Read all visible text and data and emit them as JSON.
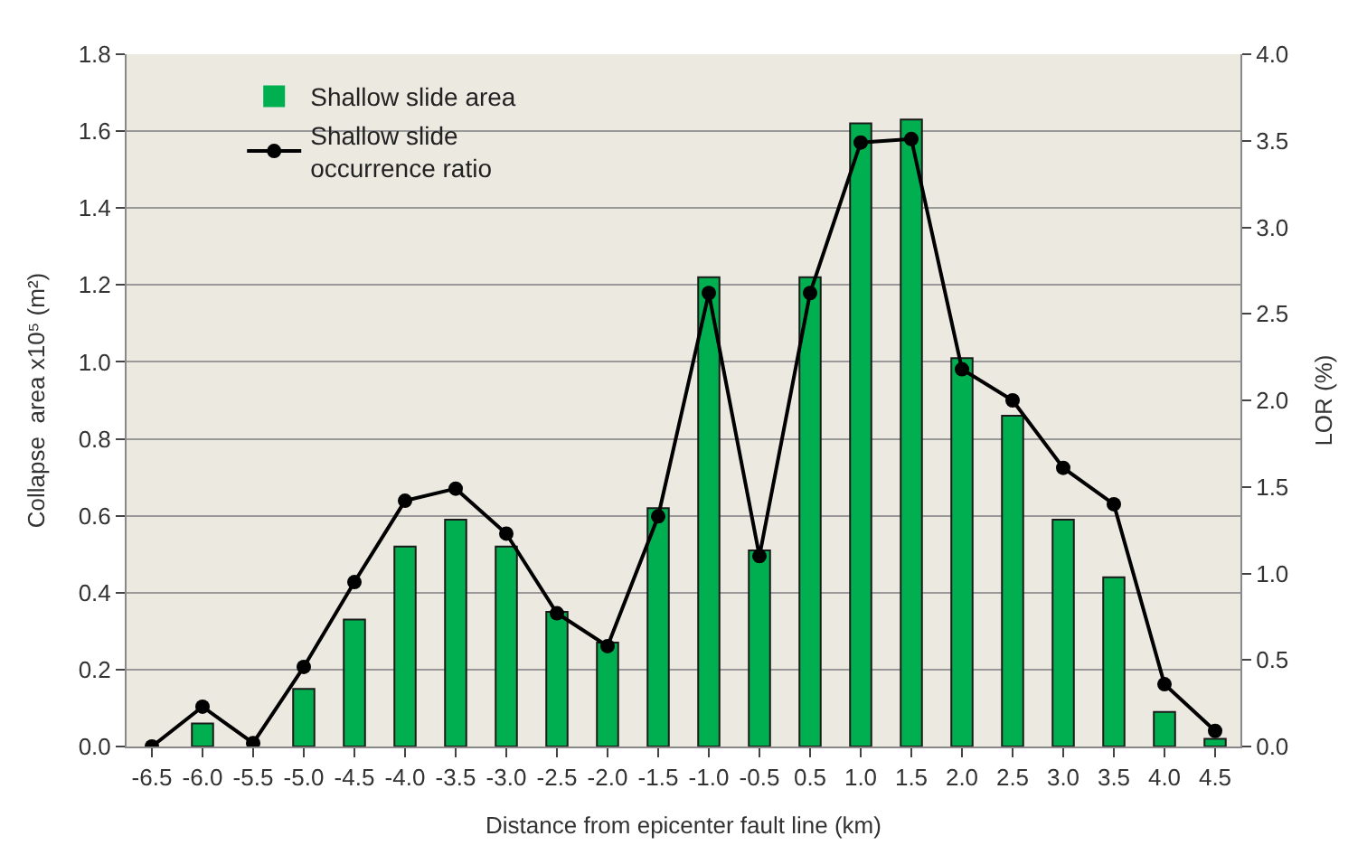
{
  "chart_data": {
    "type": "bar",
    "xlabel": "Distance from epicenter fault line (km)",
    "ylabel": "Collapse  area x10⁵ (m²)",
    "y2label": "LOR (%)",
    "categories": [
      "-6.5",
      "-6.0",
      "-5.5",
      "-5.0",
      "-4.5",
      "-4.0",
      "-3.5",
      "-3.0",
      "-2.5",
      "-2.0",
      "-1.5",
      "-1.0",
      "-0.5",
      "0.5",
      "1.0",
      "1.5",
      "2.0",
      "2.5",
      "3.0",
      "3.5",
      "4.0",
      "4.5"
    ],
    "series": [
      {
        "name": "Shallow slide area",
        "color": "#00b050",
        "values": [
          0,
          0.06,
          0,
          0.15,
          0.33,
          0.52,
          0.59,
          0.52,
          0.35,
          0.27,
          0.62,
          1.22,
          0.51,
          1.22,
          1.62,
          1.63,
          1.01,
          0.86,
          0.59,
          0.44,
          0.09,
          0.02
        ]
      },
      {
        "name": "Shallow slide occurrence ratio",
        "type": "line",
        "axis": "y2",
        "color": "#000000",
        "marker": "circle",
        "values": [
          0,
          0.23,
          0.02,
          0.46,
          0.95,
          1.42,
          1.49,
          1.23,
          0.77,
          0.58,
          1.33,
          2.62,
          1.1,
          2.62,
          3.49,
          3.51,
          2.18,
          2.0,
          1.61,
          1.4,
          0.36,
          0.09
        ]
      }
    ],
    "ylim": [
      0,
      1.8
    ],
    "yticks": [
      {
        "value": 0,
        "label": "0.0"
      },
      {
        "value": 0.2,
        "label": "0.2"
      },
      {
        "value": 0.4,
        "label": "0.4"
      },
      {
        "value": 0.6,
        "label": "0.6"
      },
      {
        "value": 0.8,
        "label": "0.8"
      },
      {
        "value": 1.0,
        "label": "1.0"
      },
      {
        "value": 1.2,
        "label": "1.2"
      },
      {
        "value": 1.4,
        "label": "1.4"
      },
      {
        "value": 1.6,
        "label": "1.6"
      },
      {
        "value": 1.8,
        "label": "1.8"
      }
    ],
    "y2lim": [
      0,
      4.0
    ],
    "y2ticks": [
      {
        "value": 0,
        "label": "0.0"
      },
      {
        "value": 0.5,
        "label": "0.5"
      },
      {
        "value": 1.0,
        "label": "1.0"
      },
      {
        "value": 1.5,
        "label": "1.5"
      },
      {
        "value": 2.0,
        "label": "2.0"
      },
      {
        "value": 2.5,
        "label": "2.5"
      },
      {
        "value": 3.0,
        "label": "3.0"
      },
      {
        "value": 3.5,
        "label": "3.5"
      },
      {
        "value": 4.0,
        "label": "4.0"
      }
    ],
    "grid": "y",
    "legend": "top left"
  }
}
